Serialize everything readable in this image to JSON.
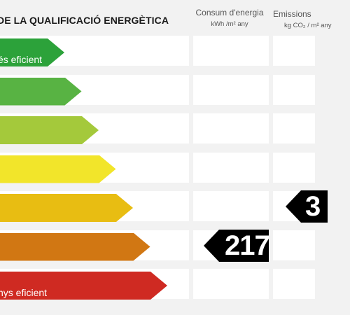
{
  "title": "DE LA QUALIFICACIÓ ENERGÈTICA",
  "columns": {
    "consum": {
      "label": "Consum d'energia",
      "unit": "kWh /m² any"
    },
    "emissions": {
      "label": "Emissions",
      "unit": "kg CO₂ / m² any"
    }
  },
  "bands": [
    {
      "label": "és eficient",
      "color": "#2ca23a"
    },
    {
      "label": "",
      "color": "#58b343"
    },
    {
      "label": "",
      "color": "#a4c93b"
    },
    {
      "label": "",
      "color": "#f2e52a"
    },
    {
      "label": "",
      "color": "#e8bd12"
    },
    {
      "label": "",
      "color": "#d17713"
    },
    {
      "label": "nys eficient",
      "color": "#cf2a22"
    }
  ],
  "consum_value": "217",
  "emissions_value": "3"
}
